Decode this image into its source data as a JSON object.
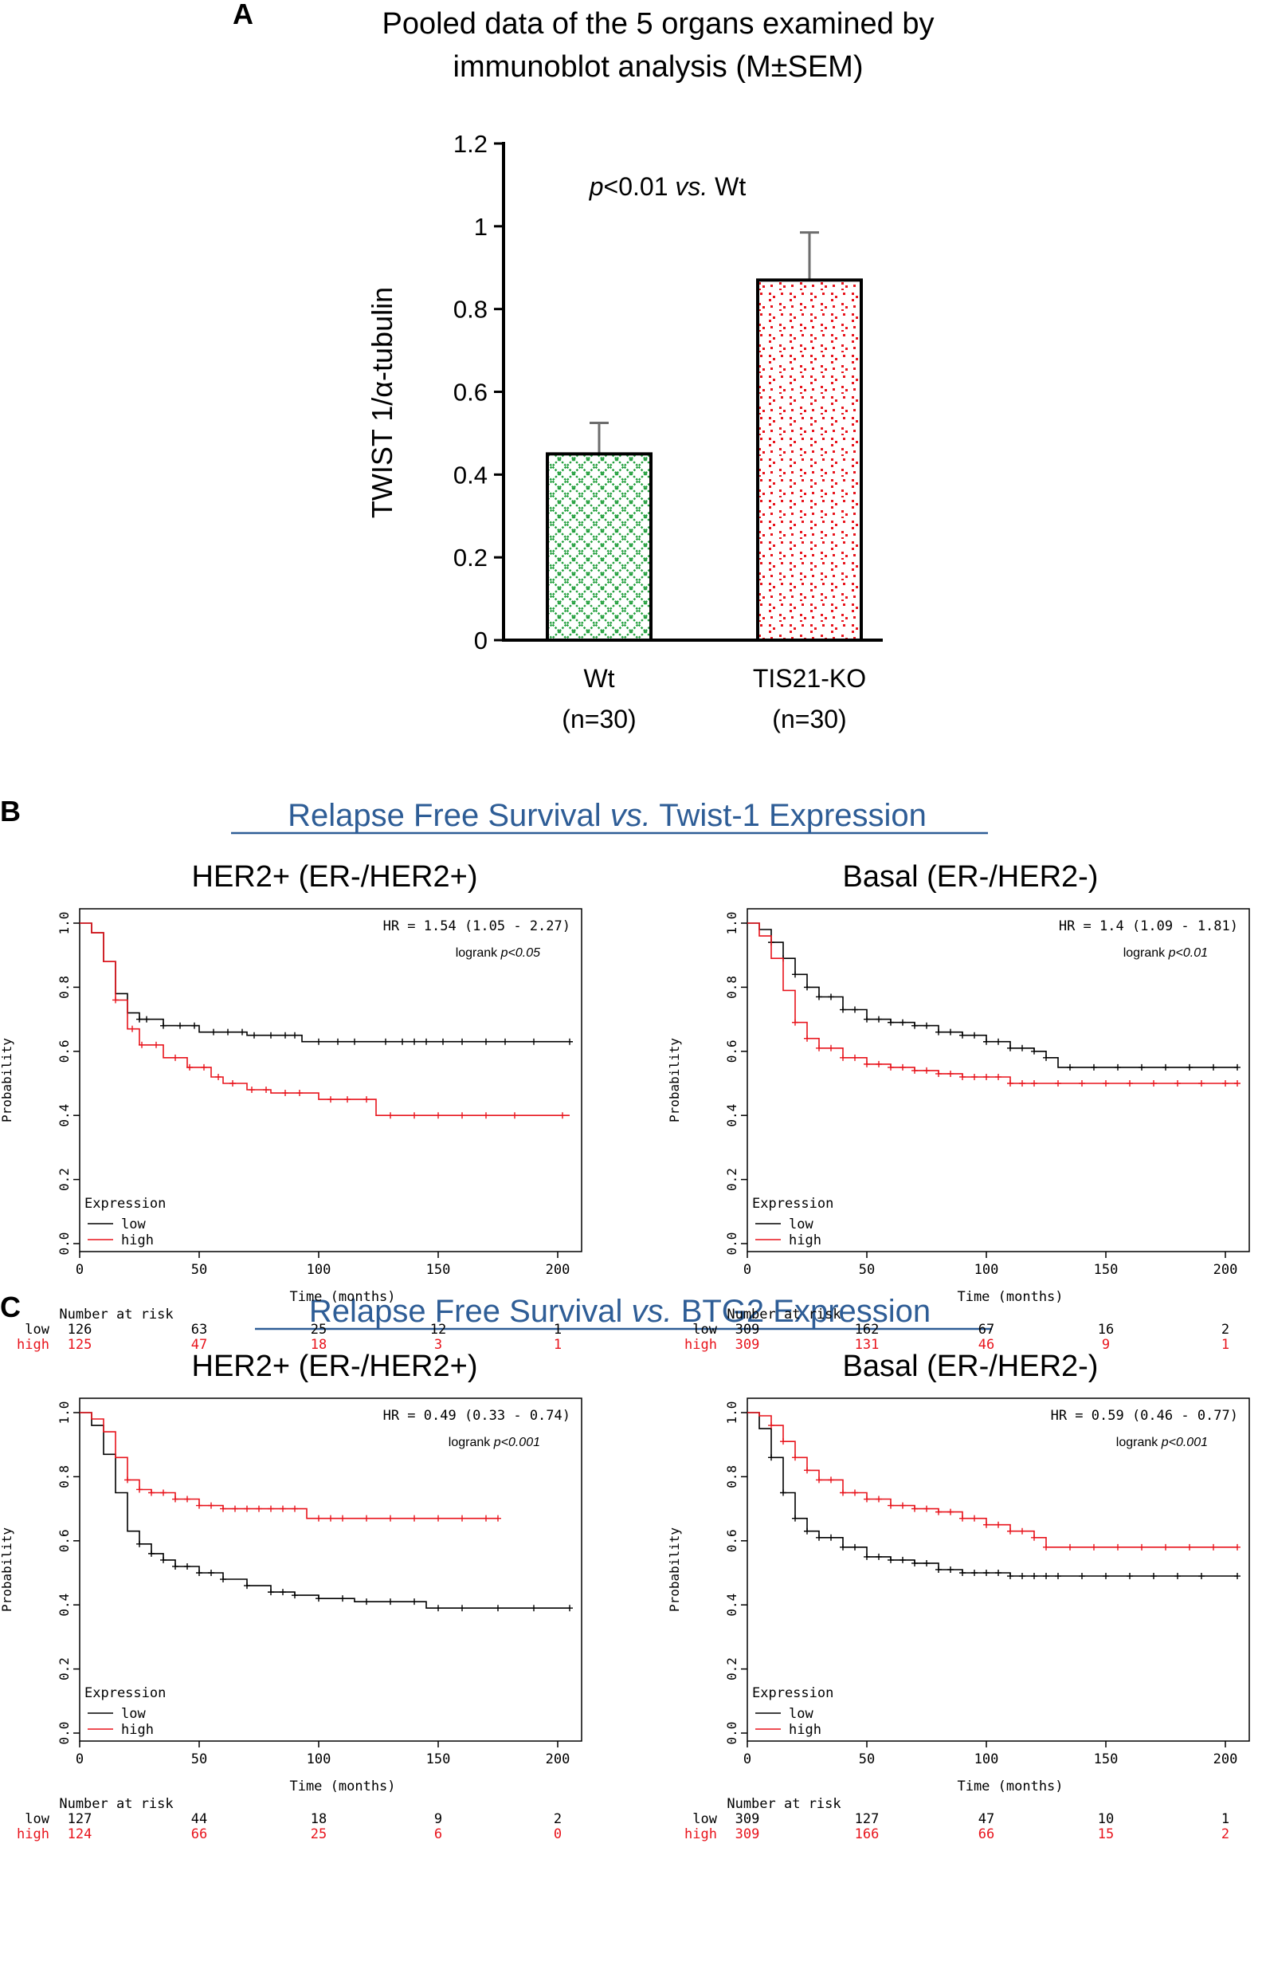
{
  "panel_a": {
    "letter": "A",
    "title_line1": "Pooled data of the 5 organs examined by",
    "title_line2": "immunoblot analysis (M±SEM)",
    "stat_prefix": "p",
    "stat_mid": "<0.01 ",
    "stat_vs": "vs.",
    "stat_suffix": " Wt"
  },
  "panel_b": {
    "letter": "B",
    "header_pre": "Relapse Free Survival ",
    "header_vs": "vs.",
    "header_post": " Twist-1 Expression"
  },
  "panel_c": {
    "letter": "C",
    "header_pre": "Relapse Free Survival ",
    "header_vs": "vs.",
    "header_post": " BTG2 Expression"
  },
  "km_common": {
    "ylabel": "Probability",
    "xlabel": "Time (months)",
    "legend_title": "Expression",
    "legend_low": "low",
    "legend_high": "high",
    "risk_title": "Number at risk",
    "row_low": "low",
    "row_high": "high",
    "logrank_prefix": "logrank "
  },
  "colors": {
    "low": "#000000",
    "high": "#e8141c",
    "header": "#2e5d96",
    "green": "#1f9e3a",
    "red": "#e8141c"
  },
  "chart_data": [
    {
      "id": "bar",
      "type": "bar",
      "title": "Pooled data of the 5 organs examined by immunoblot analysis (M±SEM)",
      "ylabel": "TWIST 1/α-tubulin",
      "categories": [
        "Wt",
        "TIS21-KO"
      ],
      "category_sub": [
        "(n=30)",
        "(n=30)"
      ],
      "values": [
        0.45,
        0.87
      ],
      "errors": [
        0.075,
        0.115
      ],
      "ylim": [
        0,
        1.2
      ],
      "yticks": [
        0,
        0.2,
        0.4,
        0.6,
        0.8,
        1,
        1.2
      ],
      "ytick_labels": [
        "0",
        "0.2",
        "0.4",
        "0.6",
        "0.8",
        "1",
        "1.2"
      ],
      "annotation": "p<0.01 vs. Wt"
    },
    {
      "id": "kmB1",
      "type": "line",
      "title": "HER2+ (ER-/HER2+)",
      "hr": "HR = 1.54 (1.05 - 2.27)",
      "logrank_p": "p<0.05",
      "xlim": [
        0,
        205
      ],
      "ylim": [
        0,
        1
      ],
      "xticks": [
        0,
        50,
        100,
        150,
        200
      ],
      "yticks": [
        0,
        0.2,
        0.4,
        0.6,
        0.8,
        1
      ],
      "ytick_labels": [
        "0.0",
        "0.2",
        "0.4",
        "0.6",
        "0.8",
        "1.0"
      ],
      "series": [
        {
          "name": "low",
          "x": [
            0,
            5,
            10,
            15,
            20,
            25,
            35,
            50,
            70,
            92,
            93,
            205
          ],
          "y": [
            1,
            0.97,
            0.88,
            0.78,
            0.72,
            0.7,
            0.68,
            0.66,
            0.65,
            0.65,
            0.63,
            0.63
          ],
          "censor_x": [
            25,
            28,
            35,
            42,
            48,
            56,
            62,
            68,
            73,
            80,
            86,
            90,
            100,
            108,
            115,
            128,
            135,
            140,
            145,
            152,
            160,
            170,
            178,
            190,
            205
          ]
        },
        {
          "name": "high",
          "x": [
            0,
            5,
            10,
            15,
            20,
            25,
            35,
            45,
            55,
            60,
            70,
            80,
            95,
            100,
            110,
            123,
            124,
            205
          ],
          "y": [
            1,
            0.97,
            0.88,
            0.76,
            0.67,
            0.62,
            0.58,
            0.55,
            0.52,
            0.5,
            0.48,
            0.47,
            0.47,
            0.45,
            0.45,
            0.45,
            0.4,
            0.4
          ],
          "censor_x": [
            15,
            22,
            26,
            32,
            40,
            46,
            52,
            58,
            64,
            72,
            78,
            86,
            92,
            105,
            112,
            120,
            130,
            140,
            150,
            160,
            170,
            182,
            202
          ]
        }
      ],
      "risk_x": [
        0,
        50,
        100,
        150,
        200
      ],
      "risk_low": [
        "126",
        "63",
        "25",
        "12",
        "1"
      ],
      "risk_high": [
        "125",
        "47",
        "18",
        "3",
        "1"
      ]
    },
    {
      "id": "kmB2",
      "type": "line",
      "title": "Basal (ER-/HER2-)",
      "hr": "HR = 1.4 (1.09 - 1.81)",
      "logrank_p": "p<0.01",
      "xlim": [
        0,
        205
      ],
      "ylim": [
        0,
        1
      ],
      "xticks": [
        0,
        50,
        100,
        150,
        200
      ],
      "yticks": [
        0,
        0.2,
        0.4,
        0.6,
        0.8,
        1
      ],
      "ytick_labels": [
        "0.0",
        "0.2",
        "0.4",
        "0.6",
        "0.8",
        "1.0"
      ],
      "series": [
        {
          "name": "low",
          "x": [
            0,
            5,
            10,
            15,
            20,
            25,
            30,
            40,
            50,
            60,
            70,
            80,
            90,
            100,
            110,
            120,
            125,
            130,
            205
          ],
          "y": [
            1,
            0.98,
            0.94,
            0.89,
            0.84,
            0.8,
            0.77,
            0.73,
            0.7,
            0.69,
            0.68,
            0.66,
            0.65,
            0.63,
            0.61,
            0.6,
            0.58,
            0.55,
            0.55
          ],
          "censor_x": [
            10,
            15,
            20,
            25,
            30,
            35,
            40,
            45,
            50,
            55,
            60,
            65,
            70,
            75,
            80,
            85,
            90,
            95,
            100,
            105,
            110,
            115,
            120,
            125,
            135,
            145,
            155,
            165,
            175,
            185,
            195,
            205
          ]
        },
        {
          "name": "high",
          "x": [
            0,
            5,
            10,
            15,
            20,
            25,
            30,
            40,
            50,
            60,
            70,
            80,
            90,
            100,
            110,
            205
          ],
          "y": [
            1,
            0.96,
            0.89,
            0.79,
            0.69,
            0.64,
            0.61,
            0.58,
            0.56,
            0.55,
            0.54,
            0.53,
            0.52,
            0.52,
            0.5,
            0.5
          ],
          "censor_x": [
            20,
            25,
            30,
            35,
            40,
            45,
            50,
            55,
            60,
            65,
            70,
            75,
            80,
            85,
            90,
            95,
            100,
            105,
            110,
            115,
            120,
            130,
            140,
            150,
            160,
            170,
            180,
            190,
            200,
            205
          ]
        }
      ],
      "risk_x": [
        0,
        50,
        100,
        150,
        200
      ],
      "risk_low": [
        "309",
        "162",
        "67",
        "16",
        "2"
      ],
      "risk_high": [
        "309",
        "131",
        "46",
        "9",
        "1"
      ]
    },
    {
      "id": "kmC1",
      "type": "line",
      "title": "HER2+ (ER-/HER2+)",
      "hr": "HR = 0.49 (0.33 - 0.74)",
      "logrank_p": "p<0.001",
      "xlim": [
        0,
        205
      ],
      "ylim": [
        0,
        1
      ],
      "xticks": [
        0,
        50,
        100,
        150,
        200
      ],
      "yticks": [
        0,
        0.2,
        0.4,
        0.6,
        0.8,
        1
      ],
      "ytick_labels": [
        "0.0",
        "0.2",
        "0.4",
        "0.6",
        "0.8",
        "1.0"
      ],
      "series": [
        {
          "name": "low",
          "x": [
            0,
            5,
            10,
            15,
            20,
            25,
            30,
            35,
            40,
            50,
            60,
            70,
            80,
            90,
            100,
            115,
            125,
            145,
            205
          ],
          "y": [
            1,
            0.96,
            0.87,
            0.75,
            0.63,
            0.59,
            0.56,
            0.54,
            0.52,
            0.5,
            0.48,
            0.46,
            0.44,
            0.43,
            0.42,
            0.41,
            0.41,
            0.39,
            0.39
          ],
          "censor_x": [
            25,
            30,
            35,
            40,
            45,
            50,
            55,
            60,
            70,
            80,
            85,
            90,
            100,
            110,
            120,
            130,
            140,
            150,
            160,
            175,
            190,
            205
          ]
        },
        {
          "name": "high",
          "x": [
            0,
            5,
            10,
            15,
            20,
            25,
            30,
            40,
            50,
            60,
            75,
            90,
            95,
            120,
            175
          ],
          "y": [
            1,
            0.98,
            0.94,
            0.86,
            0.79,
            0.76,
            0.75,
            0.73,
            0.71,
            0.7,
            0.7,
            0.7,
            0.67,
            0.67,
            0.67
          ],
          "censor_x": [
            20,
            25,
            30,
            35,
            40,
            45,
            50,
            55,
            60,
            65,
            70,
            75,
            80,
            85,
            90,
            100,
            105,
            110,
            120,
            130,
            140,
            150,
            160,
            170,
            175
          ]
        }
      ],
      "risk_x": [
        0,
        50,
        100,
        150,
        200
      ],
      "risk_low": [
        "127",
        "44",
        "18",
        "9",
        "2"
      ],
      "risk_high": [
        "124",
        "66",
        "25",
        "6",
        "0"
      ]
    },
    {
      "id": "kmC2",
      "type": "line",
      "title": "Basal (ER-/HER2-)",
      "hr": "HR = 0.59 (0.46 - 0.77)",
      "logrank_p": "p<0.001",
      "xlim": [
        0,
        205
      ],
      "ylim": [
        0,
        1
      ],
      "xticks": [
        0,
        50,
        100,
        150,
        200
      ],
      "yticks": [
        0,
        0.2,
        0.4,
        0.6,
        0.8,
        1
      ],
      "ytick_labels": [
        "0.0",
        "0.2",
        "0.4",
        "0.6",
        "0.8",
        "1.0"
      ],
      "series": [
        {
          "name": "low",
          "x": [
            0,
            5,
            10,
            15,
            20,
            25,
            30,
            40,
            50,
            60,
            70,
            80,
            90,
            100,
            110,
            120,
            205
          ],
          "y": [
            1,
            0.95,
            0.86,
            0.75,
            0.67,
            0.63,
            0.61,
            0.58,
            0.55,
            0.54,
            0.53,
            0.51,
            0.5,
            0.5,
            0.49,
            0.49,
            0.49
          ],
          "censor_x": [
            10,
            15,
            20,
            25,
            30,
            35,
            40,
            45,
            50,
            55,
            60,
            65,
            70,
            75,
            80,
            85,
            90,
            95,
            100,
            105,
            110,
            115,
            120,
            125,
            130,
            140,
            150,
            160,
            170,
            180,
            190,
            205
          ]
        },
        {
          "name": "high",
          "x": [
            0,
            5,
            10,
            15,
            20,
            25,
            30,
            40,
            50,
            60,
            70,
            80,
            90,
            100,
            110,
            120,
            125,
            205
          ],
          "y": [
            1,
            0.99,
            0.96,
            0.91,
            0.86,
            0.82,
            0.79,
            0.75,
            0.73,
            0.71,
            0.7,
            0.69,
            0.67,
            0.65,
            0.63,
            0.61,
            0.58,
            0.58
          ],
          "censor_x": [
            10,
            15,
            20,
            25,
            30,
            35,
            40,
            45,
            50,
            55,
            60,
            65,
            70,
            75,
            80,
            85,
            90,
            95,
            100,
            105,
            110,
            115,
            120,
            125,
            135,
            145,
            155,
            165,
            175,
            185,
            195,
            205
          ]
        }
      ],
      "risk_x": [
        0,
        50,
        100,
        150,
        200
      ],
      "risk_low": [
        "309",
        "127",
        "47",
        "10",
        "1"
      ],
      "risk_high": [
        "309",
        "166",
        "66",
        "15",
        "2"
      ]
    }
  ]
}
